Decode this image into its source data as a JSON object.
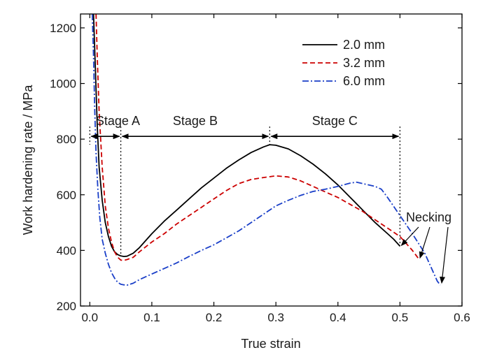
{
  "chart_data": {
    "type": "line",
    "xlabel": "True strain",
    "ylabel": "Work hardening rate / MPa",
    "xlim": [
      -0.015,
      0.6
    ],
    "ylim": [
      200,
      1250
    ],
    "xticks": [
      "0.0",
      "0.1",
      "0.2",
      "0.3",
      "0.4",
      "0.5",
      "0.6"
    ],
    "yticks": [
      "200",
      "400",
      "600",
      "800",
      "1000",
      "1200"
    ],
    "grid": false,
    "legend": "top-right",
    "series": [
      {
        "name": "2.0 mm",
        "color": "#000000",
        "dash": "solid",
        "points": [
          [
            0.006,
            1250
          ],
          [
            0.009,
            1050
          ],
          [
            0.012,
            850
          ],
          [
            0.015,
            700
          ],
          [
            0.02,
            580
          ],
          [
            0.025,
            500
          ],
          [
            0.03,
            450
          ],
          [
            0.035,
            415
          ],
          [
            0.04,
            395
          ],
          [
            0.045,
            385
          ],
          [
            0.05,
            380
          ],
          [
            0.055,
            378
          ],
          [
            0.06,
            379
          ],
          [
            0.07,
            390
          ],
          [
            0.08,
            410
          ],
          [
            0.1,
            460
          ],
          [
            0.12,
            505
          ],
          [
            0.14,
            545
          ],
          [
            0.16,
            585
          ],
          [
            0.18,
            625
          ],
          [
            0.2,
            660
          ],
          [
            0.22,
            695
          ],
          [
            0.24,
            725
          ],
          [
            0.26,
            752
          ],
          [
            0.28,
            772
          ],
          [
            0.29,
            780
          ],
          [
            0.3,
            778
          ],
          [
            0.32,
            765
          ],
          [
            0.34,
            740
          ],
          [
            0.36,
            710
          ],
          [
            0.38,
            675
          ],
          [
            0.4,
            635
          ],
          [
            0.42,
            590
          ],
          [
            0.44,
            545
          ],
          [
            0.46,
            500
          ],
          [
            0.48,
            460
          ],
          [
            0.49,
            440
          ],
          [
            0.5,
            415
          ]
        ]
      },
      {
        "name": "3.2 mm",
        "color": "#cc0000",
        "dash": "dashed",
        "points": [
          [
            0.01,
            1250
          ],
          [
            0.012,
            1100
          ],
          [
            0.015,
            900
          ],
          [
            0.02,
            700
          ],
          [
            0.025,
            560
          ],
          [
            0.03,
            480
          ],
          [
            0.035,
            430
          ],
          [
            0.04,
            395
          ],
          [
            0.045,
            375
          ],
          [
            0.05,
            365
          ],
          [
            0.055,
            364
          ],
          [
            0.06,
            367
          ],
          [
            0.07,
            375
          ],
          [
            0.08,
            395
          ],
          [
            0.1,
            430
          ],
          [
            0.12,
            460
          ],
          [
            0.14,
            495
          ],
          [
            0.16,
            525
          ],
          [
            0.18,
            555
          ],
          [
            0.2,
            585
          ],
          [
            0.22,
            615
          ],
          [
            0.24,
            640
          ],
          [
            0.26,
            655
          ],
          [
            0.28,
            662
          ],
          [
            0.3,
            668
          ],
          [
            0.32,
            664
          ],
          [
            0.34,
            650
          ],
          [
            0.36,
            630
          ],
          [
            0.38,
            610
          ],
          [
            0.4,
            590
          ],
          [
            0.42,
            565
          ],
          [
            0.44,
            540
          ],
          [
            0.46,
            510
          ],
          [
            0.48,
            480
          ],
          [
            0.5,
            450
          ],
          [
            0.52,
            400
          ],
          [
            0.53,
            370
          ]
        ]
      },
      {
        "name": "6.0 mm",
        "color": "#1a3fc8",
        "dash": "dashdot",
        "points": [
          [
            0.004,
            1250
          ],
          [
            0.006,
            1100
          ],
          [
            0.008,
            900
          ],
          [
            0.01,
            750
          ],
          [
            0.013,
            620
          ],
          [
            0.016,
            520
          ],
          [
            0.02,
            440
          ],
          [
            0.025,
            390
          ],
          [
            0.03,
            350
          ],
          [
            0.035,
            320
          ],
          [
            0.04,
            300
          ],
          [
            0.045,
            285
          ],
          [
            0.05,
            278
          ],
          [
            0.055,
            276
          ],
          [
            0.06,
            275
          ],
          [
            0.07,
            282
          ],
          [
            0.08,
            295
          ],
          [
            0.1,
            315
          ],
          [
            0.12,
            335
          ],
          [
            0.14,
            355
          ],
          [
            0.16,
            378
          ],
          [
            0.18,
            400
          ],
          [
            0.2,
            420
          ],
          [
            0.22,
            445
          ],
          [
            0.24,
            470
          ],
          [
            0.26,
            500
          ],
          [
            0.28,
            530
          ],
          [
            0.3,
            560
          ],
          [
            0.32,
            580
          ],
          [
            0.34,
            598
          ],
          [
            0.36,
            612
          ],
          [
            0.38,
            620
          ],
          [
            0.4,
            630
          ],
          [
            0.42,
            642
          ],
          [
            0.43,
            645
          ],
          [
            0.44,
            640
          ],
          [
            0.46,
            630
          ],
          [
            0.47,
            620
          ],
          [
            0.48,
            590
          ],
          [
            0.5,
            525
          ],
          [
            0.52,
            460
          ],
          [
            0.54,
            390
          ],
          [
            0.55,
            340
          ],
          [
            0.56,
            290
          ],
          [
            0.565,
            275
          ]
        ]
      }
    ],
    "annotations": {
      "stages": [
        {
          "label": "Stage A",
          "x_start": 0.0,
          "x_end": 0.05
        },
        {
          "label": "Stage B",
          "x_start": 0.05,
          "x_end": 0.29
        },
        {
          "label": "Stage C",
          "x_start": 0.29,
          "x_end": 0.5
        }
      ],
      "arrow_y": 810,
      "necking_label": "Necking",
      "necking_targets": [
        [
          0.5,
          410
        ],
        [
          0.53,
          365
        ],
        [
          0.565,
          275
        ]
      ]
    }
  }
}
